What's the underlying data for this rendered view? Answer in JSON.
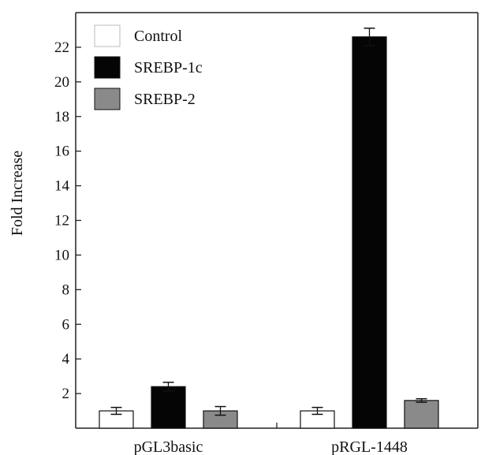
{
  "chart_data": {
    "type": "bar",
    "ylabel": "Fold Increase",
    "xlabel": "",
    "ylim": [
      0,
      24
    ],
    "yticks": [
      2,
      4,
      6,
      8,
      10,
      12,
      14,
      16,
      18,
      20,
      22
    ],
    "categories": [
      "pGL3basic",
      "pRGL-1448"
    ],
    "series": [
      {
        "name": "Control",
        "values": [
          1.0,
          1.0
        ],
        "errors": [
          0.2,
          0.2
        ],
        "color": "#ffffff"
      },
      {
        "name": "SREBP-1c",
        "values": [
          2.4,
          22.6
        ],
        "errors": [
          0.25,
          0.5
        ],
        "color": "#050505"
      },
      {
        "name": "SREBP-2",
        "values": [
          1.0,
          1.6
        ],
        "errors": [
          0.25,
          0.1
        ],
        "color": "#8a8a8a"
      }
    ],
    "legend_position": "top-left",
    "grid": false
  }
}
